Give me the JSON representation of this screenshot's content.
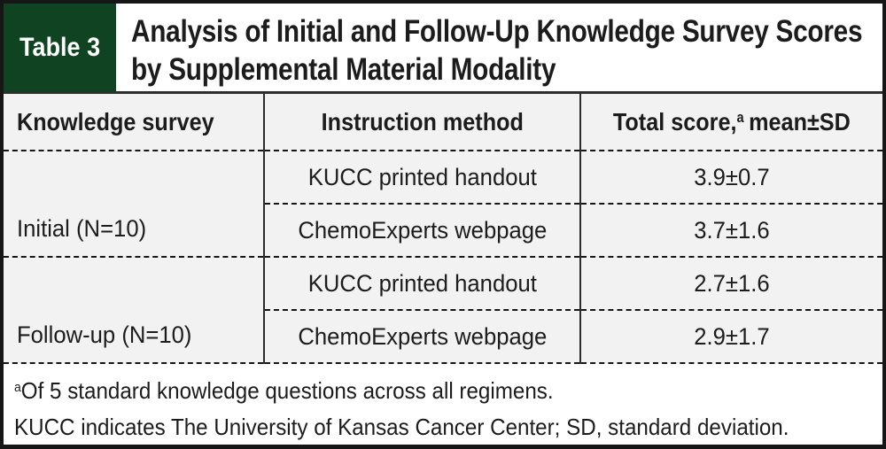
{
  "header": {
    "badge": "Table 3",
    "title_line1": "Analysis of Initial and Follow-Up Knowledge Survey Scores",
    "title_line2": "by Supplemental Material Modality"
  },
  "colors": {
    "badge_bg": "#0f4321",
    "cell_bg": "#f2f2f2",
    "text": "#1c1c1c",
    "border": "#161616"
  },
  "table": {
    "columns": {
      "knowledge_survey": "Knowledge survey",
      "instruction_method": "Instruction method",
      "total_score": {
        "pre": "Total score,",
        "sup": "a",
        "post": "mean±SD"
      }
    },
    "groups": [
      {
        "label": "Initial (N=10)",
        "rows": [
          {
            "method": "KUCC printed handout",
            "score": "3.9±0.7"
          },
          {
            "method": "ChemoExperts webpage",
            "score": "3.7±1.6"
          }
        ]
      },
      {
        "label": "Follow-up (N=10)",
        "rows": [
          {
            "method": "KUCC printed handout",
            "score": "2.7±1.6"
          },
          {
            "method": "ChemoExperts webpage",
            "score": "2.9±1.7"
          }
        ]
      }
    ]
  },
  "footnotes": {
    "line1_sup": "a",
    "line1_text": "Of 5 standard knowledge questions across all regimens.",
    "line2_text": "KUCC indicates The University of Kansas Cancer Center; SD, standard deviation."
  }
}
